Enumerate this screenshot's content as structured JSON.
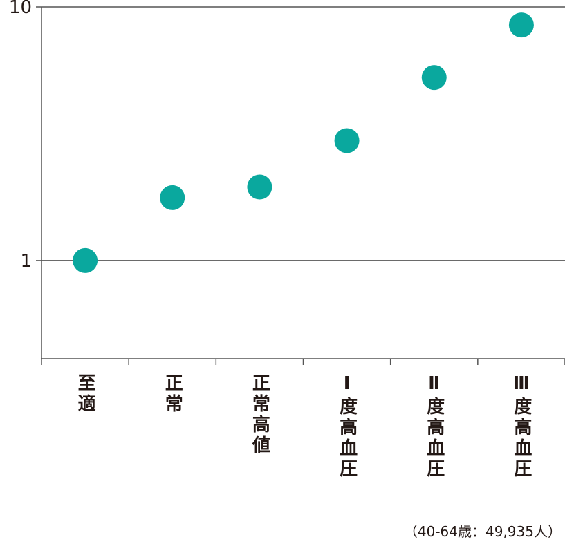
{
  "chart_data": {
    "type": "scatter",
    "categories": [
      "至適",
      "正常",
      "正常高値",
      "Ⅰ度高血圧",
      "Ⅱ度高血圧",
      "Ⅲ度高血圧"
    ],
    "values": [
      1.0,
      1.77,
      1.95,
      2.97,
      5.27,
      8.49
    ],
    "color": "#0aa89e",
    "ylim": [
      0.41,
      10
    ],
    "yticks": [
      1,
      10
    ],
    "log_scale": true,
    "grid": true,
    "note": "（40-64歳：49,935人）"
  }
}
